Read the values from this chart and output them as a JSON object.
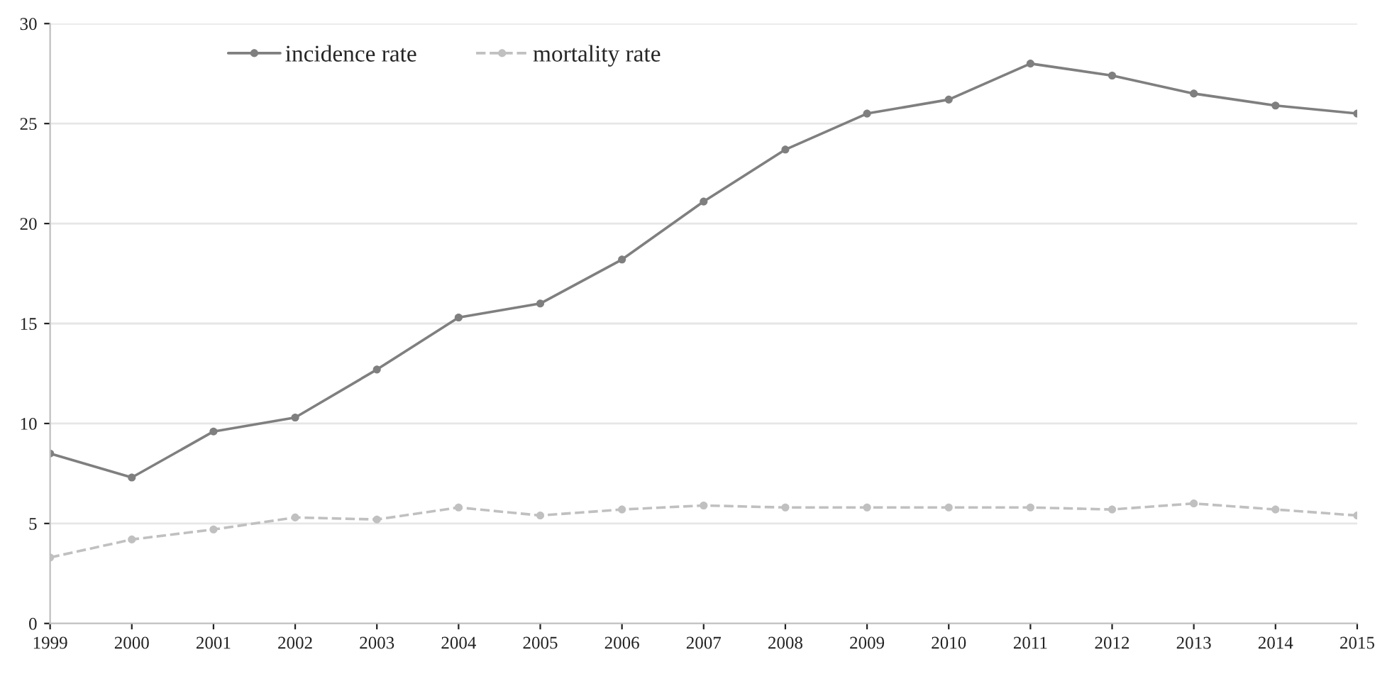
{
  "chart_data": {
    "type": "line",
    "x": [
      1999,
      2000,
      2001,
      2002,
      2003,
      2004,
      2005,
      2006,
      2007,
      2008,
      2009,
      2010,
      2011,
      2012,
      2013,
      2014,
      2015
    ],
    "series": [
      {
        "name": "incidence rate",
        "color": "#7f7f7f",
        "line_style": "solid",
        "values": [
          8.5,
          7.3,
          9.6,
          10.3,
          12.7,
          15.3,
          16.0,
          18.2,
          21.1,
          23.7,
          25.5,
          26.2,
          28.0,
          27.4,
          26.5,
          25.9,
          25.5
        ]
      },
      {
        "name": "mortality rate",
        "color": "#c0c0c0",
        "line_style": "dashed",
        "values": [
          3.3,
          4.2,
          4.7,
          5.3,
          5.2,
          5.8,
          5.4,
          5.7,
          5.9,
          5.8,
          5.8,
          5.8,
          5.8,
          5.7,
          6.0,
          5.7,
          5.4
        ]
      }
    ],
    "xlim": [
      1999,
      2015
    ],
    "xticks": [
      1999,
      2000,
      2001,
      2002,
      2003,
      2004,
      2005,
      2006,
      2007,
      2008,
      2009,
      2010,
      2011,
      2012,
      2013,
      2014,
      2015
    ],
    "ylim": [
      0,
      30
    ],
    "yticks": [
      0,
      5,
      10,
      15,
      20,
      25,
      30
    ],
    "grid": "y",
    "legend": "top left",
    "marker": "circle"
  }
}
